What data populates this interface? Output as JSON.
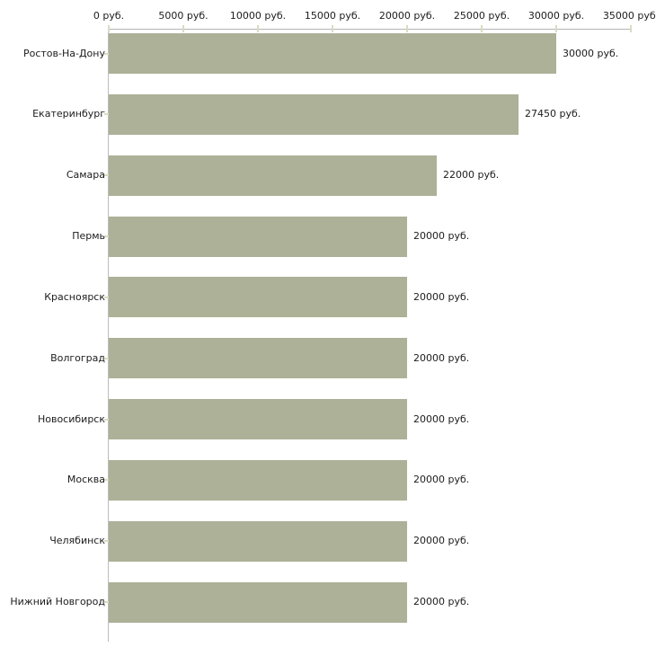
{
  "chart_data": {
    "type": "bar",
    "orientation": "horizontal",
    "title": "",
    "xlabel": "",
    "ylabel": "",
    "unit": "руб.",
    "categories": [
      "Ростов-На-Дону",
      "Екатеринбург",
      "Самара",
      "Пермь",
      "Красноярск",
      "Волгоград",
      "Новосибирск",
      "Москва",
      "Челябинск",
      "Нижний Новгород"
    ],
    "values": [
      30000,
      27450,
      22000,
      20000,
      20000,
      20000,
      20000,
      20000,
      20000,
      20000
    ],
    "value_labels": [
      "30000 руб.",
      "27450 руб.",
      "22000 руб.",
      "20000 руб.",
      "20000 руб.",
      "20000 руб.",
      "20000 руб.",
      "20000 руб.",
      "20000 руб.",
      "20000 руб."
    ],
    "x_ticks": [
      0,
      5000,
      10000,
      15000,
      20000,
      25000,
      30000,
      35000
    ],
    "x_tick_labels": [
      "0 руб.",
      "5000 руб.",
      "10000 руб.",
      "15000 руб.",
      "20000 руб.",
      "25000 руб.",
      "30000 руб.",
      "35000 руб."
    ],
    "xlim": [
      0,
      35000
    ],
    "grid": false,
    "legend": "none",
    "colors": {
      "bar": "#acb197",
      "axis_line": "#b5b5b5",
      "tick": "#d9dcc2",
      "text": "#1c1c1c",
      "background": "#ffffff"
    }
  }
}
